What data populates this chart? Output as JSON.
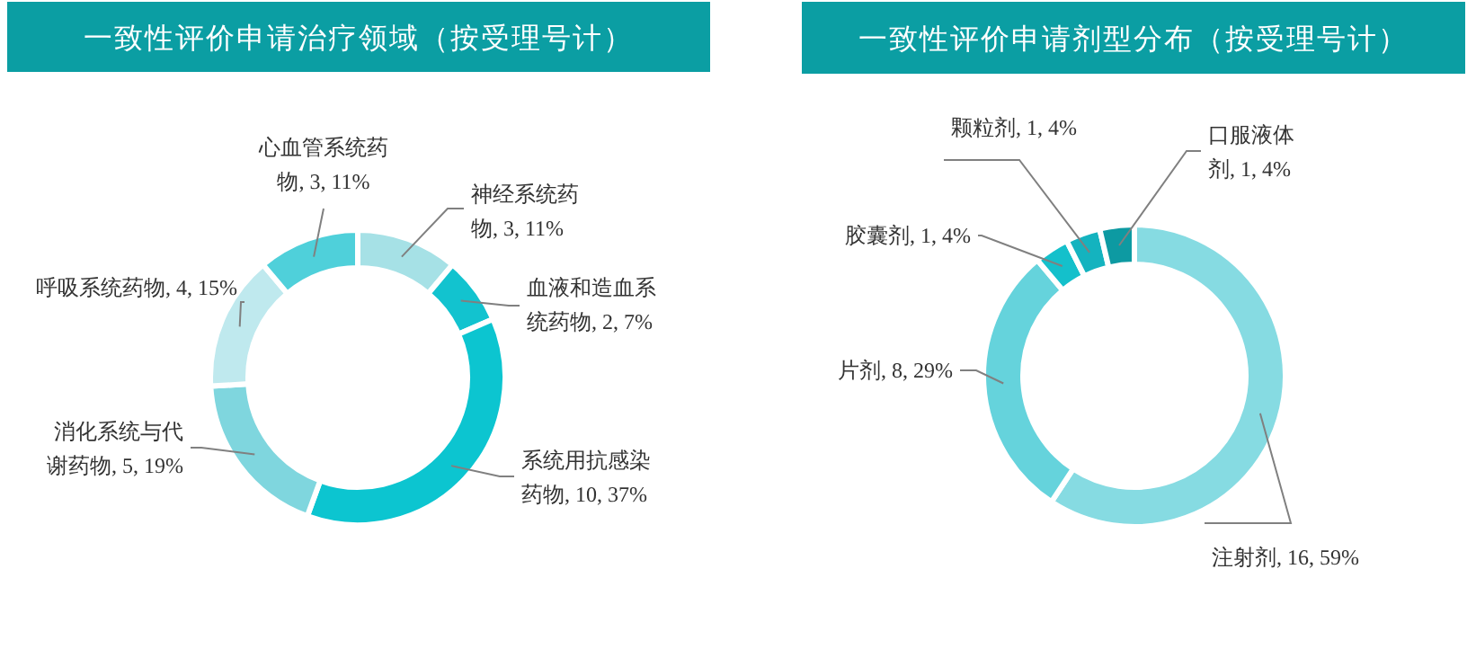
{
  "chart_data": [
    {
      "type": "donut",
      "title": "一致性评价申请治疗领域（按受理号计）",
      "categories": [
        "神经系统药物",
        "血液和造血系统药物",
        "系统用抗感染药物",
        "消化系统与代谢药物",
        "呼吸系统药物",
        "心血管系统药物"
      ],
      "values": [
        3,
        2,
        10,
        5,
        4,
        3
      ],
      "value_labels": [
        "3, 11%",
        "2, 7%",
        "10, 37%",
        "5, 19%",
        "4, 15%",
        "3, 11%"
      ],
      "colors": [
        "#a6e1e6",
        "#12c3cf",
        "#0cc5d0",
        "#7fd6de",
        "#bfe9ee",
        "#4fd0da"
      ]
    },
    {
      "type": "donut",
      "title": "一致性评价申请剂型分布（按受理号计）",
      "categories": [
        "注射剂",
        "片剂",
        "胶囊剂",
        "颗粒剂",
        "口服液体剂"
      ],
      "values": [
        16,
        8,
        1,
        1,
        1
      ],
      "value_labels": [
        "16, 59%",
        "8, 29%",
        "1, 4%",
        "1, 4%",
        "1, 4%"
      ],
      "colors": [
        "#86dbe2",
        "#65d3dc",
        "#14c0cb",
        "#14b3bf",
        "#0d9aa2"
      ]
    }
  ]
}
